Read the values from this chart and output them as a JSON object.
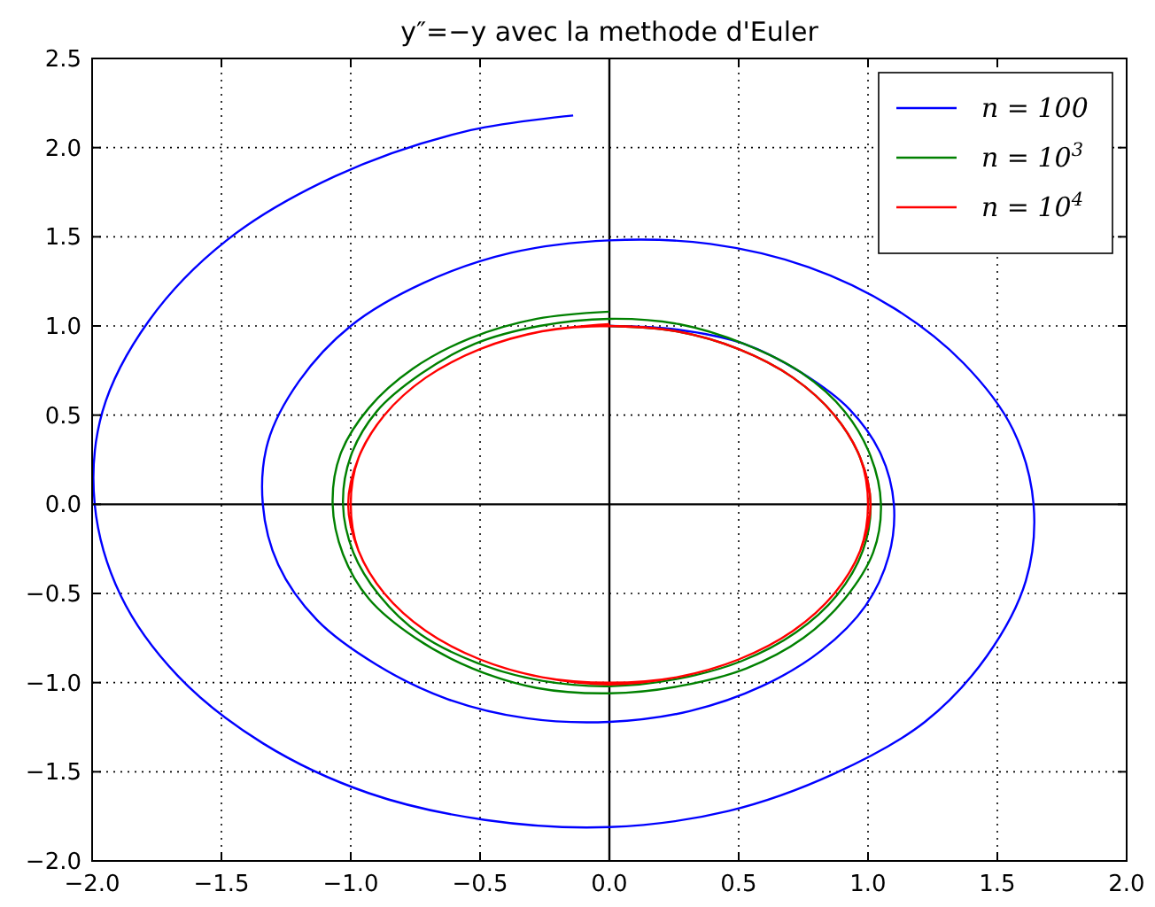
{
  "chart_data": {
    "type": "line",
    "title": "y″=−y avec la methode d'Euler",
    "xlim": [
      -2,
      2
    ],
    "ylim": [
      -2,
      2.5
    ],
    "xticks": [
      {
        "value": -2,
        "label": "−2.0"
      },
      {
        "value": -1.5,
        "label": "−1.5"
      },
      {
        "value": -1,
        "label": "−1.0"
      },
      {
        "value": -0.5,
        "label": "−0.5"
      },
      {
        "value": 0,
        "label": "0.0"
      },
      {
        "value": 0.5,
        "label": "0.5"
      },
      {
        "value": 1,
        "label": "1.0"
      },
      {
        "value": 1.5,
        "label": "1.5"
      },
      {
        "value": 2,
        "label": "2.0"
      }
    ],
    "yticks": [
      {
        "value": -2,
        "label": "−2.0"
      },
      {
        "value": -1.5,
        "label": "−1.5"
      },
      {
        "value": -1,
        "label": "−1.0"
      },
      {
        "value": -0.5,
        "label": "−0.5"
      },
      {
        "value": 0,
        "label": "0.0"
      },
      {
        "value": 0.5,
        "label": "0.5"
      },
      {
        "value": 1,
        "label": "1.0"
      },
      {
        "value": 1.5,
        "label": "1.5"
      },
      {
        "value": 2,
        "label": "2.0"
      },
      {
        "value": 2.5,
        "label": "2.5"
      }
    ],
    "grid": true,
    "legend": "top right",
    "line_style": "solid",
    "series": [
      {
        "type": "line",
        "color": "#000000",
        "x": [
          0,
          0
        ],
        "values": [
          -2,
          2.5
        ]
      },
      {
        "type": "line",
        "color": "#000000",
        "x": [
          -2,
          2
        ],
        "values": [
          0,
          0
        ]
      },
      {
        "name": "n = 100",
        "color": "#0000ff",
        "x": [
          0,
          0.26,
          0.52,
          0.74,
          0.93,
          1.05,
          1.1,
          1.08,
          0.99,
          0.82,
          0.59,
          0.31,
          0,
          -0.32,
          -0.63,
          -0.9,
          -1.13,
          -1.28,
          -1.34,
          -1.32,
          -1.2,
          -1,
          -0.72,
          -0.38,
          0,
          0.39,
          0.77,
          1.1,
          1.37,
          1.56,
          1.64,
          1.61,
          1.46,
          1.22,
          0.87,
          0.46,
          0,
          -0.48,
          -0.93,
          -1.34,
          -1.67,
          -1.89,
          -1.99,
          -1.96,
          -1.78,
          -1.48,
          -1.06,
          -0.56,
          -0.14
        ],
        "values": [
          1,
          0.98,
          0.9,
          0.74,
          0.53,
          0.28,
          0,
          -0.29,
          -0.57,
          -0.82,
          -1.02,
          -1.16,
          -1.22,
          -1.2,
          -1.09,
          -0.9,
          -0.65,
          -0.34,
          0,
          0.35,
          0.69,
          1,
          1.24,
          1.41,
          1.48,
          1.46,
          1.33,
          1.1,
          0.79,
          0.42,
          0,
          -0.43,
          -0.85,
          -1.22,
          -1.51,
          -1.72,
          -1.81,
          -1.77,
          -1.62,
          -1.34,
          -0.96,
          -0.51,
          0,
          0.52,
          1.03,
          1.48,
          1.84,
          2.09,
          2.18
        ]
      },
      {
        "name": "n = 10$^{3}$",
        "color": "#008000",
        "x": [
          0,
          0.26,
          0.5,
          0.71,
          0.87,
          0.97,
          1.01,
          0.98,
          0.88,
          0.72,
          0.51,
          0.26,
          0,
          -0.26,
          -0.51,
          -0.73,
          -0.89,
          -0.99,
          -1.03,
          -1,
          -0.9,
          -0.73,
          -0.52,
          -0.27,
          0,
          0.27,
          0.52,
          0.74,
          0.91,
          1.01,
          1.05,
          1.02,
          0.91,
          0.75,
          0.53,
          0.27,
          0,
          -0.28,
          -0.53,
          -0.75,
          -0.93,
          -1.03,
          -1.07,
          -1.04,
          -0.93,
          -0.76,
          -0.54,
          -0.28,
          0
        ],
        "values": [
          1,
          0.97,
          0.87,
          0.71,
          0.5,
          0.26,
          0,
          -0.26,
          -0.51,
          -0.72,
          -0.88,
          -0.98,
          -1.02,
          -0.99,
          -0.89,
          -0.73,
          -0.51,
          -0.27,
          0,
          0.27,
          0.52,
          0.73,
          0.9,
          1,
          1.04,
          1.01,
          0.9,
          0.74,
          0.52,
          0.27,
          0,
          -0.27,
          -0.53,
          -0.75,
          -0.92,
          -1.02,
          -1.06,
          -1.03,
          -0.92,
          -0.75,
          -0.53,
          -0.28,
          0,
          0.28,
          0.54,
          0.76,
          0.93,
          1.04,
          1.08
        ]
      },
      {
        "name": "n = 10$^{4}$",
        "color": "#ff0000",
        "x": [
          0,
          0.26,
          0.5,
          0.71,
          0.87,
          0.97,
          1,
          0.97,
          0.87,
          0.71,
          0.5,
          0.26,
          0,
          -0.26,
          -0.5,
          -0.71,
          -0.87,
          -0.97,
          -1,
          -0.97,
          -0.87,
          -0.71,
          -0.5,
          -0.26,
          0,
          0.26,
          0.5,
          0.71,
          0.87,
          0.97,
          1.01,
          0.97,
          0.87,
          0.71,
          0.5,
          0.26,
          0,
          -0.26,
          -0.5,
          -0.71,
          -0.87,
          -0.97,
          -1.01,
          -0.97,
          -0.87,
          -0.71,
          -0.5,
          -0.26,
          0
        ],
        "values": [
          1,
          0.97,
          0.87,
          0.71,
          0.5,
          0.26,
          0,
          -0.26,
          -0.5,
          -0.71,
          -0.87,
          -0.97,
          -1,
          -0.97,
          -0.87,
          -0.71,
          -0.5,
          -0.26,
          0,
          0.26,
          0.5,
          0.71,
          0.87,
          0.97,
          1,
          0.97,
          0.87,
          0.71,
          0.5,
          0.26,
          0,
          -0.26,
          -0.5,
          -0.71,
          -0.87,
          -0.97,
          -1.01,
          -0.97,
          -0.87,
          -0.71,
          -0.5,
          -0.26,
          0,
          0.26,
          0.5,
          0.71,
          0.87,
          0.97,
          1.01
        ]
      }
    ]
  }
}
